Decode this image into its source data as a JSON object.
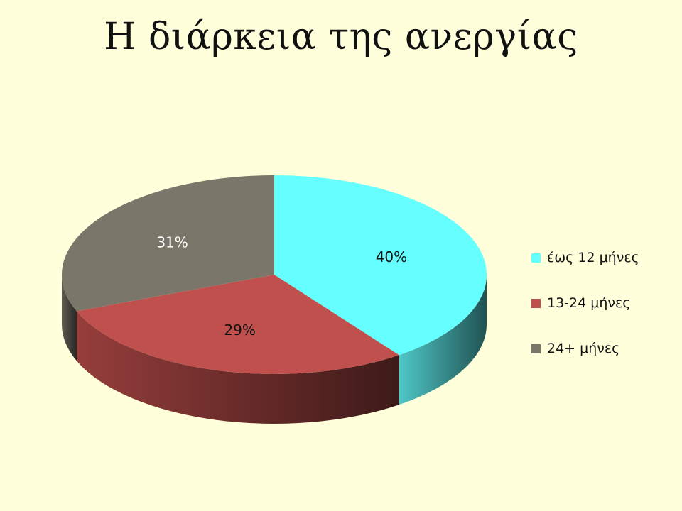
{
  "chart_data": {
    "type": "pie",
    "title": "Η διάρκεια της ανεργίας",
    "categories": [
      "έως 12 μήνες",
      "13-24 μήνες",
      "24+ μήνες"
    ],
    "values": [
      40,
      29,
      31
    ],
    "labels": [
      "40%",
      "29%",
      "31%"
    ],
    "colors": [
      "#66ffff",
      "#c0504d",
      "#7a776a"
    ],
    "label_colors": [
      "#111111",
      "#111111",
      "#ffffff"
    ],
    "legend_position": "right",
    "three_d": true
  }
}
